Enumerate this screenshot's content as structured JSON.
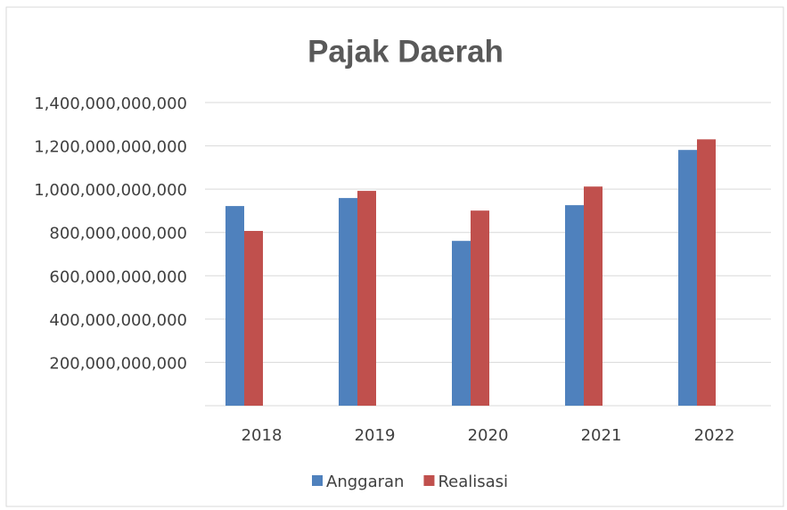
{
  "chart_data": {
    "type": "bar",
    "title": "Pajak Daerah",
    "categories": [
      "2018",
      "2019",
      "2020",
      "2021",
      "2022"
    ],
    "series": [
      {
        "name": "Anggaran",
        "color": "#4f81bd",
        "values": [
          922000000000,
          959000000000,
          761000000000,
          926000000000,
          1181000000000
        ]
      },
      {
        "name": "Realisasi",
        "color": "#c0504d",
        "values": [
          807000000000,
          992000000000,
          901000000000,
          1012000000000,
          1230000000000
        ]
      }
    ],
    "ylim": [
      0,
      1400000000000
    ],
    "yticks": [
      {
        "value": 200000000000,
        "label": "200,000,000,000"
      },
      {
        "value": 400000000000,
        "label": "400,000,000,000"
      },
      {
        "value": 600000000000,
        "label": "600,000,000,000"
      },
      {
        "value": 800000000000,
        "label": "800,000,000,000"
      },
      {
        "value": 1000000000000,
        "label": "1,000,000,000,000"
      },
      {
        "value": 1200000000000,
        "label": "1,200,000,000,000"
      },
      {
        "value": 1400000000000,
        "label": "1,400,000,000,000"
      }
    ],
    "grid": true,
    "legend": "bottom"
  }
}
